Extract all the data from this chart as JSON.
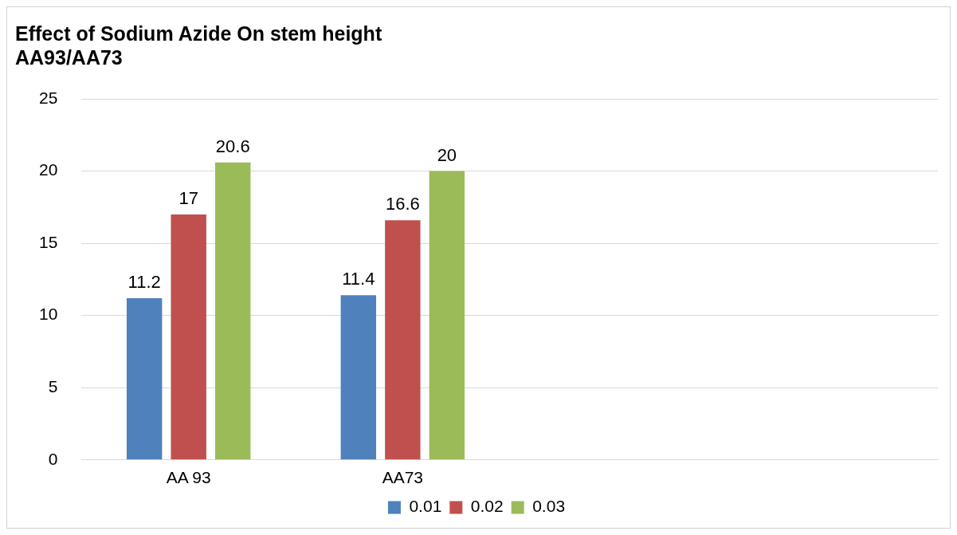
{
  "chart_data": {
    "type": "bar",
    "title": "Effect of Sodium Azide On stem height\nAA93/AA73",
    "categories": [
      "AA 93",
      "AA73",
      null,
      null
    ],
    "series": [
      {
        "name": "0.01",
        "color": "#4f81bd",
        "values": [
          11.2,
          11.4,
          null,
          null
        ]
      },
      {
        "name": "0.02",
        "color": "#c0504d",
        "values": [
          17,
          16.6,
          null,
          null
        ]
      },
      {
        "name": "0.03",
        "color": "#9bbb59",
        "values": [
          20.6,
          20,
          null,
          null
        ]
      }
    ],
    "ylim": [
      0,
      25
    ],
    "yticks": [
      0,
      5,
      10,
      15,
      20,
      25
    ],
    "grid": "y",
    "legend": "bottom",
    "data_labels": true
  }
}
